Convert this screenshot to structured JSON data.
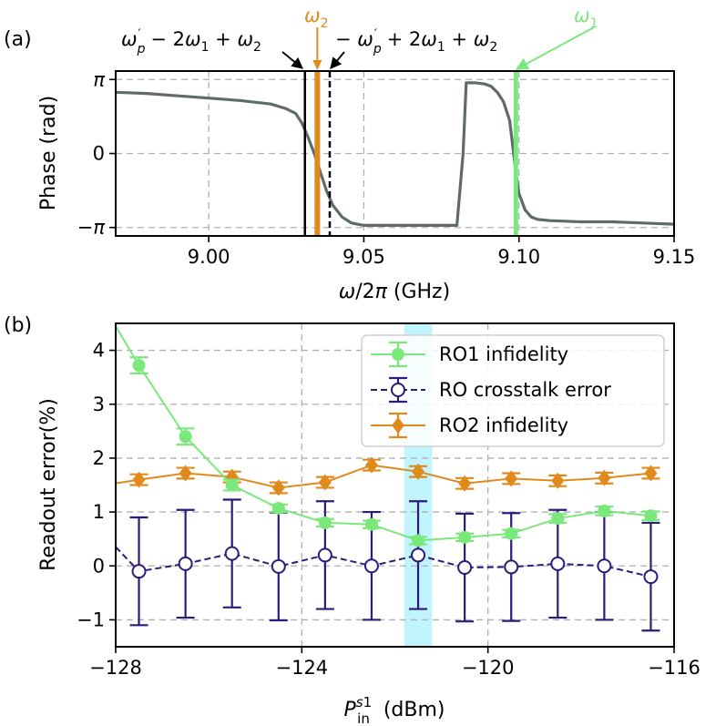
{
  "chart_data": [
    {
      "type": "line",
      "panel_label": "(a)",
      "xlabel": "ω/2π (GHz)",
      "ylabel": "Phase (rad)",
      "xlim": [
        8.97,
        9.15
      ],
      "ylim": [
        -3.5,
        3.5
      ],
      "xticks": [
        9.0,
        9.05,
        9.1,
        9.15
      ],
      "xtick_labels": [
        "9.00",
        "9.05",
        "9.10",
        "9.15"
      ],
      "yticks": [
        -3.14159,
        0,
        3.14159
      ],
      "ytick_labels": [
        "−π",
        "0",
        "π"
      ],
      "grid": true,
      "series": [
        {
          "name": "phase",
          "color": "#5f6b6b",
          "x": [
            8.97,
            8.98,
            8.99,
            9.0,
            9.01,
            9.02,
            9.025,
            9.028,
            9.03,
            9.032,
            9.034,
            9.036,
            9.038,
            9.04,
            9.043,
            9.046,
            9.05,
            9.06,
            9.07,
            9.08,
            9.082,
            9.083,
            9.086,
            9.089,
            9.091,
            9.093,
            9.095,
            9.097,
            9.098,
            9.099,
            9.1,
            9.102,
            9.104,
            9.106,
            9.11,
            9.12,
            9.13,
            9.14,
            9.15
          ],
          "y": [
            2.6,
            2.55,
            2.45,
            2.35,
            2.25,
            2.1,
            1.9,
            1.7,
            1.3,
            0.7,
            0.0,
            -0.8,
            -1.6,
            -2.2,
            -2.7,
            -2.95,
            -3.05,
            -3.05,
            -3.05,
            -3.05,
            0.0,
            3.0,
            3.0,
            2.95,
            2.85,
            2.6,
            2.2,
            1.4,
            0.3,
            -0.8,
            -1.7,
            -2.4,
            -2.7,
            -2.8,
            -2.85,
            -2.9,
            -2.9,
            -2.95,
            -3.0
          ]
        }
      ],
      "vlines": [
        {
          "name": "ω'p − 2ω1 + ω2",
          "x": 9.031,
          "color": "#000000",
          "style": "solid",
          "width": 2.5
        },
        {
          "name": "ω2",
          "x": 9.035,
          "color": "#e08a1c",
          "style": "solid",
          "width": 6
        },
        {
          "name": "−ω'p + 2ω1 + ω2",
          "x": 9.039,
          "color": "#000000",
          "style": "dashed",
          "width": 2.5
        },
        {
          "name": "ω1",
          "x": 9.099,
          "color": "#7be87b",
          "style": "solid",
          "width": 5
        }
      ],
      "annotations": [
        {
          "name": "left-sideband",
          "text": "ω′p − 2ω1 + ω2"
        },
        {
          "name": "right-sideband",
          "text": "− ω′p + 2ω1 + ω2"
        },
        {
          "name": "omega2",
          "text": "ω2",
          "color": "#e08a1c"
        },
        {
          "name": "omega1",
          "text": "ω1",
          "color": "#7be87b"
        }
      ]
    },
    {
      "type": "line",
      "panel_label": "(b)",
      "xlabel": "P_in^s1 (dBm)",
      "ylabel": "Readout error(%)",
      "xlim": [
        -128,
        -116
      ],
      "ylim": [
        -1.5,
        4.5
      ],
      "xticks": [
        -128,
        -124,
        -120,
        -116
      ],
      "xtick_labels": [
        "−128",
        "−124",
        "−120",
        "−116"
      ],
      "yticks": [
        -1,
        0,
        1,
        2,
        3,
        4
      ],
      "ytick_labels": [
        "−1",
        "0",
        "1",
        "2",
        "3",
        "4"
      ],
      "grid": true,
      "highlight_band": {
        "x0": -121.8,
        "x1": -121.2,
        "color": "#b5f3ff"
      },
      "legend": {
        "position": "top-right"
      },
      "x": [
        -127.5,
        -126.5,
        -125.5,
        -124.5,
        -123.5,
        -122.5,
        -121.5,
        -120.5,
        -119.5,
        -118.5,
        -117.5,
        -116.5
      ],
      "series": [
        {
          "name": "RO1 infidelity",
          "color": "#7be87b",
          "marker": "circle-filled",
          "line": "solid",
          "values": [
            3.72,
            2.4,
            1.5,
            1.07,
            0.8,
            0.77,
            0.47,
            0.53,
            0.6,
            0.88,
            1.02,
            0.93
          ],
          "errors": [
            0.15,
            0.15,
            0.1,
            0.07,
            0.07,
            0.07,
            0.07,
            0.07,
            0.07,
            0.08,
            0.08,
            0.08
          ],
          "line_start": {
            "x": -128,
            "y": 4.45
          }
        },
        {
          "name": "RO crosstalk error",
          "color": "#2e1a7a",
          "marker": "circle-open",
          "line": "dashed",
          "values": [
            -0.1,
            0.04,
            0.23,
            -0.01,
            0.2,
            0.0,
            0.2,
            -0.03,
            -0.02,
            0.04,
            0.0,
            -0.2
          ],
          "errors": [
            1.0,
            1.0,
            1.0,
            1.0,
            1.0,
            1.0,
            1.0,
            1.0,
            1.0,
            1.0,
            1.0,
            1.0
          ],
          "line_start": {
            "x": -128,
            "y": 0.35
          }
        },
        {
          "name": "RO2 infidelity",
          "color": "#e08a1c",
          "marker": "diamond-filled",
          "line": "solid",
          "values": [
            1.6,
            1.72,
            1.65,
            1.45,
            1.55,
            1.87,
            1.75,
            1.53,
            1.62,
            1.58,
            1.63,
            1.72
          ],
          "errors": [
            0.1,
            0.1,
            0.1,
            0.1,
            0.1,
            0.1,
            0.1,
            0.1,
            0.1,
            0.1,
            0.1,
            0.1
          ],
          "line_start": {
            "x": -128,
            "y": 1.53
          }
        }
      ]
    }
  ]
}
